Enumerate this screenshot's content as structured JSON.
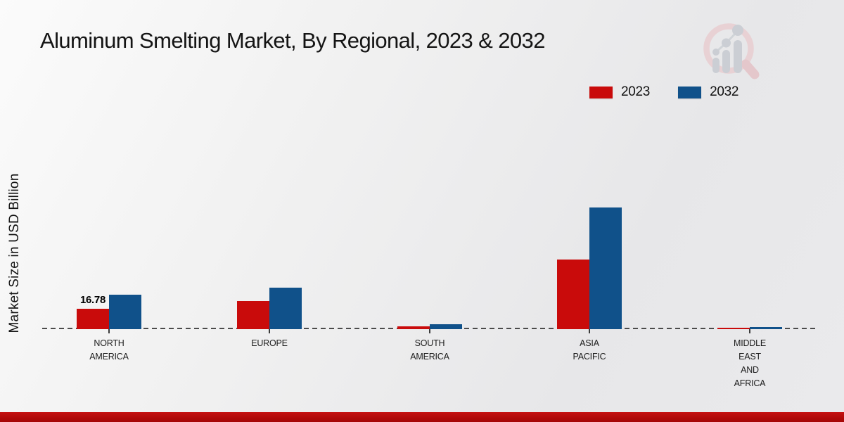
{
  "title": "Aluminum Smelting Market, By Regional, 2023 & 2032",
  "y_axis_label": "Market Size in USD Billion",
  "legend": {
    "items": [
      {
        "label": "2023",
        "color": "#c90b0b"
      },
      {
        "label": "2032",
        "color": "#10518a"
      }
    ]
  },
  "colors": {
    "bar_2023": "#c90b0b",
    "bar_2032": "#10518a",
    "baseline_dash": "#4b4b4b",
    "bottom_accent": "#b00909",
    "background": "#ebebed",
    "title_text": "#141414"
  },
  "logo": {
    "name": "market-research-future-watermark"
  },
  "chart_data": {
    "type": "bar",
    "title": "Aluminum Smelting Market, By Regional, 2023 & 2032",
    "xlabel": "",
    "ylabel": "Market Size in USD Billion",
    "ylim": [
      0,
      115
    ],
    "grid": false,
    "legend_position": "top-right",
    "baseline_style": "dashed",
    "categories": [
      "North America",
      "Europe",
      "South America",
      "Asia Pacific",
      "Middle East and Africa"
    ],
    "category_tick_lines": [
      [
        "NORTH",
        "AMERICA"
      ],
      [
        "EUROPE"
      ],
      [
        "SOUTH",
        "AMERICA"
      ],
      [
        "ASIA",
        "PACIFIC"
      ],
      [
        "MIDDLE",
        "EAST",
        "AND",
        "AFRICA"
      ]
    ],
    "series": [
      {
        "name": "2023",
        "color": "#c90b0b",
        "values": [
          16.78,
          23.1,
          2.6,
          57.3,
          1.2
        ]
      },
      {
        "name": "2032",
        "color": "#10518a",
        "values": [
          28.6,
          34.4,
          4.3,
          100.4,
          2.0
        ]
      }
    ],
    "annotations": [
      {
        "category": "North America",
        "series": "2023",
        "text": "16.78"
      }
    ]
  }
}
